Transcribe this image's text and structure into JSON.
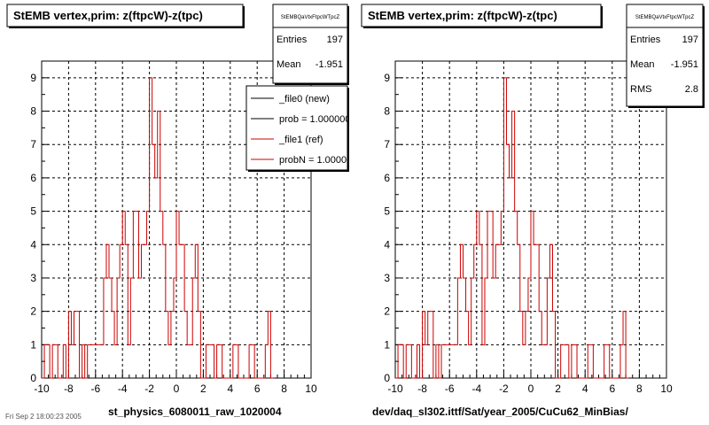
{
  "page": {
    "corner_text": "Fri Sep 2 18:00:23 2005"
  },
  "colors": {
    "reference": "#cc0000",
    "new": "#000000",
    "grid": "#000000",
    "background": "#ffffff"
  },
  "chart_data": [
    {
      "type": "histogram",
      "title": "StEMB  vertex,prim: z(ftpcW)-z(tpc)",
      "xlabel": "st_physics_6080011_raw_1020004",
      "ylabel": "",
      "xlim": [
        -10,
        10
      ],
      "ylim": [
        0,
        9.5
      ],
      "x_ticks": [
        "-10",
        "-8",
        "-6",
        "-4",
        "-2",
        "0",
        "2",
        "4",
        "6",
        "8",
        "10"
      ],
      "y_ticks": [
        "0",
        "1",
        "2",
        "3",
        "4",
        "5",
        "6",
        "7",
        "8",
        "9"
      ],
      "grid": true,
      "bin_width": 0.2,
      "stats": {
        "name": "StEMBQaVtxFtpcWTpcZ",
        "rows": [
          {
            "label": "Entries",
            "value": "197"
          },
          {
            "label": "Mean",
            "value": "-1.951"
          }
        ]
      },
      "legend": {
        "placement": "top-right",
        "entries": [
          {
            "text": "_file0 (new)",
            "color": "#000000"
          },
          {
            "text": "prob = 1.000000",
            "color": "#000000"
          },
          {
            "text": "_file1 (ref)",
            "color": "#cc0000"
          },
          {
            "text": "probN = 1.000000",
            "color": "#cc0000"
          }
        ]
      },
      "series": [
        {
          "name": "_file1 (ref)",
          "color": "#cc0000",
          "edges": [
            -10,
            -9.8,
            -9.6,
            -9.4,
            -9.2,
            -9.0,
            -8.8,
            -8.6,
            -8.4,
            -8.2,
            -8.0,
            -7.8,
            -7.6,
            -7.4,
            -7.2,
            -7.0,
            -6.8,
            -6.6,
            -6.4,
            -6.2,
            -6.0,
            -5.8,
            -5.6,
            -5.4,
            -5.2,
            -5.0,
            -4.8,
            -4.6,
            -4.4,
            -4.2,
            -4.0,
            -3.8,
            -3.6,
            -3.4,
            -3.2,
            -3.0,
            -2.8,
            -2.6,
            -2.4,
            -2.2,
            -2.0,
            -1.8,
            -1.6,
            -1.4,
            -1.2,
            -1.0,
            -0.8,
            -0.6,
            -0.4,
            -0.2,
            0.0,
            0.2,
            0.4,
            0.6,
            0.8,
            1.0,
            1.2,
            1.4,
            1.6,
            1.8,
            2.0,
            2.2,
            2.4,
            2.6,
            2.8,
            3.0,
            3.2,
            3.4,
            3.6,
            3.8,
            4.0,
            4.2,
            4.4,
            4.6,
            4.8,
            5.0,
            5.2,
            5.4,
            5.6,
            5.8,
            6.0,
            6.2,
            6.4,
            6.6,
            6.8,
            7.0,
            7.2
          ],
          "values": [
            0,
            1,
            1,
            0,
            1,
            1,
            0,
            0,
            1,
            0,
            2,
            1,
            2,
            2,
            0,
            1,
            0,
            1,
            1,
            1,
            1,
            1,
            1,
            3,
            4,
            3,
            2,
            1,
            3,
            4,
            5,
            4,
            1,
            3,
            5,
            5,
            3,
            4,
            4,
            5,
            9,
            7,
            6,
            8,
            5,
            4,
            2,
            1,
            2,
            3,
            5,
            4,
            4,
            2,
            1,
            1,
            3,
            4,
            2,
            0,
            0,
            1,
            1,
            1,
            0,
            1,
            1,
            0,
            0,
            0,
            0,
            1,
            1,
            0,
            0,
            0,
            0,
            1,
            1,
            0,
            0,
            0,
            0,
            1,
            2,
            0
          ]
        }
      ]
    },
    {
      "type": "histogram",
      "title": "StEMB  vertex,prim: z(ftpcW)-z(tpc)",
      "xlabel": "dev/daq_sl302.ittf/Sat/year_2005/CuCu62_MinBias/",
      "ylabel": "",
      "xlim": [
        -10,
        10
      ],
      "ylim": [
        0,
        9.5
      ],
      "x_ticks": [
        "-10",
        "-8",
        "-6",
        "-4",
        "-2",
        "0",
        "2",
        "4",
        "6",
        "8",
        "10"
      ],
      "y_ticks": [
        "0",
        "1",
        "2",
        "3",
        "4",
        "5",
        "6",
        "7",
        "8",
        "9"
      ],
      "grid": true,
      "bin_width": 0.2,
      "stats": {
        "name": "StEMBQaVtxFtpcWTpcZ",
        "rows": [
          {
            "label": "Entries",
            "value": "197"
          },
          {
            "label": "Mean",
            "value": "-1.951"
          },
          {
            "label": "RMS",
            "value": "2.8"
          }
        ]
      },
      "legend": null,
      "series": [
        {
          "name": "",
          "color": "#cc0000",
          "edges": [
            -10,
            -9.8,
            -9.6,
            -9.4,
            -9.2,
            -9.0,
            -8.8,
            -8.6,
            -8.4,
            -8.2,
            -8.0,
            -7.8,
            -7.6,
            -7.4,
            -7.2,
            -7.0,
            -6.8,
            -6.6,
            -6.4,
            -6.2,
            -6.0,
            -5.8,
            -5.6,
            -5.4,
            -5.2,
            -5.0,
            -4.8,
            -4.6,
            -4.4,
            -4.2,
            -4.0,
            -3.8,
            -3.6,
            -3.4,
            -3.2,
            -3.0,
            -2.8,
            -2.6,
            -2.4,
            -2.2,
            -2.0,
            -1.8,
            -1.6,
            -1.4,
            -1.2,
            -1.0,
            -0.8,
            -0.6,
            -0.4,
            -0.2,
            0.0,
            0.2,
            0.4,
            0.6,
            0.8,
            1.0,
            1.2,
            1.4,
            1.6,
            1.8,
            2.0,
            2.2,
            2.4,
            2.6,
            2.8,
            3.0,
            3.2,
            3.4,
            3.6,
            3.8,
            4.0,
            4.2,
            4.4,
            4.6,
            4.8,
            5.0,
            5.2,
            5.4,
            5.6,
            5.8,
            6.0,
            6.2,
            6.4,
            6.6,
            6.8,
            7.0,
            7.2
          ],
          "values": [
            0,
            1,
            1,
            0,
            1,
            1,
            0,
            0,
            1,
            0,
            2,
            1,
            2,
            2,
            0,
            1,
            0,
            1,
            1,
            1,
            1,
            1,
            1,
            3,
            4,
            3,
            2,
            1,
            3,
            4,
            5,
            4,
            1,
            3,
            5,
            5,
            3,
            4,
            4,
            5,
            9,
            7,
            6,
            8,
            5,
            4,
            2,
            1,
            2,
            3,
            5,
            4,
            4,
            2,
            1,
            1,
            3,
            4,
            2,
            0,
            0,
            1,
            1,
            1,
            0,
            1,
            1,
            0,
            0,
            0,
            0,
            1,
            1,
            0,
            0,
            0,
            0,
            1,
            1,
            0,
            0,
            0,
            0,
            1,
            2,
            0
          ]
        }
      ]
    }
  ]
}
